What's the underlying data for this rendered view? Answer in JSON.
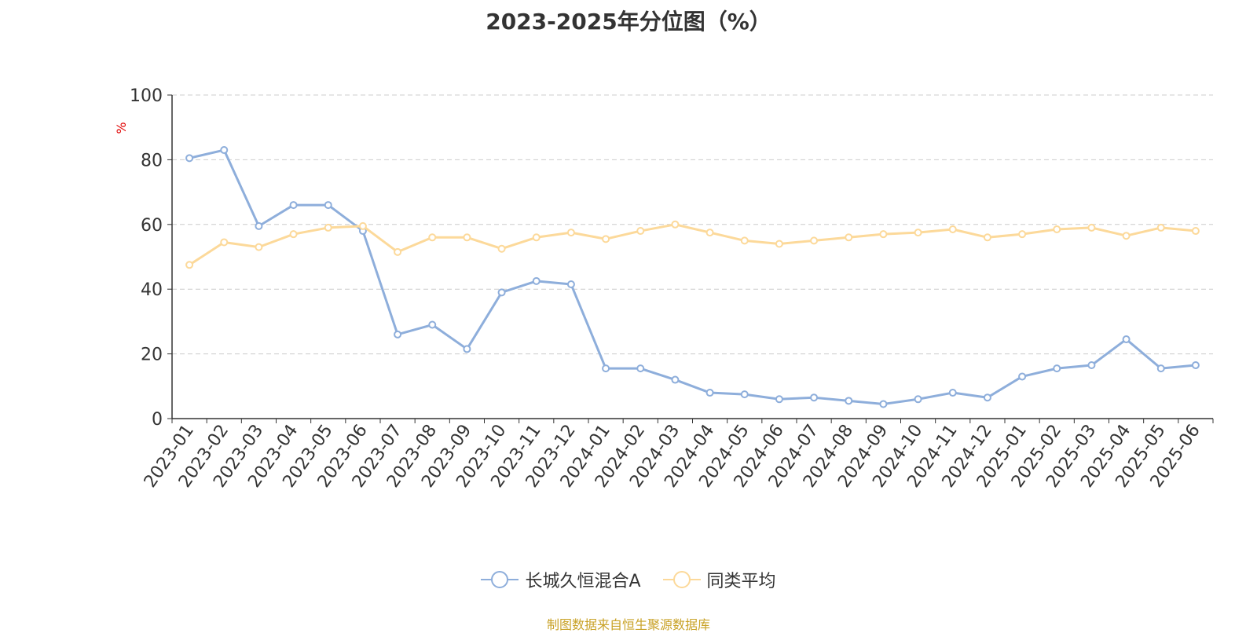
{
  "page": {
    "title": "2023-2025年分位图（%）",
    "source": "制图数据来自恒生聚源数据库"
  },
  "colors": {
    "series1": "#8eaedb",
    "series2": "#fcd99a",
    "axis": "#333333",
    "grid": "#cccccc",
    "ylabel": "#e00000",
    "source": "#c9a227"
  },
  "chart_data": {
    "type": "line",
    "title": "2023-2025年分位图（%）",
    "ylabel": "%",
    "xlabel": "",
    "ylim": [
      0,
      100
    ],
    "yticks": [
      0,
      20,
      40,
      60,
      80,
      100
    ],
    "grid": true,
    "legend_position": "bottom-center",
    "categories": [
      "2023-01",
      "2023-02",
      "2023-03",
      "2023-04",
      "2023-05",
      "2023-06",
      "2023-07",
      "2023-08",
      "2023-09",
      "2023-10",
      "2023-11",
      "2023-12",
      "2024-01",
      "2024-02",
      "2024-03",
      "2024-04",
      "2024-05",
      "2024-06",
      "2024-07",
      "2024-08",
      "2024-09",
      "2024-10",
      "2024-11",
      "2024-12",
      "2025-01",
      "2025-02",
      "2025-03",
      "2025-04",
      "2025-05",
      "2025-06"
    ],
    "series": [
      {
        "name": "长城久恒混合A",
        "color": "#8eaedb",
        "values": [
          80.5,
          83,
          59.5,
          66,
          66,
          58,
          26,
          29,
          21.5,
          39,
          42.5,
          41.5,
          15.5,
          15.5,
          12,
          8,
          7.5,
          6,
          6.5,
          5.5,
          4.5,
          6,
          8,
          6.5,
          13,
          15.5,
          16.5,
          24.5,
          15.5,
          16.5
        ]
      },
      {
        "name": "同类平均",
        "color": "#fcd99a",
        "values": [
          47.5,
          54.5,
          53,
          57,
          59,
          59.5,
          51.5,
          56,
          56,
          52.5,
          56,
          57.5,
          55.5,
          58,
          60,
          57.5,
          55,
          54,
          55,
          56,
          57,
          57.5,
          58.5,
          56,
          57,
          58.5,
          59,
          56.5,
          59,
          58
        ]
      }
    ]
  }
}
